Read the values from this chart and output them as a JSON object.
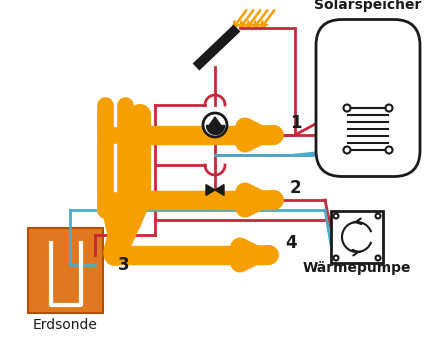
{
  "bg_color": "#ffffff",
  "orange": "#F5A000",
  "red": "#C8273C",
  "blue": "#4AACC8",
  "black": "#1a1a1a",
  "ground_color": "#E07820",
  "label_1": "1",
  "label_2": "2",
  "label_3": "3",
  "label_4": "4",
  "label_erdsonde": "Erdsonde",
  "label_solarspeicher": "Solarspeicher",
  "label_waermepumpe": "Wärmepumpe",
  "arrow_lw": 14,
  "pipe_lw": 2.0,
  "font_size": 10
}
